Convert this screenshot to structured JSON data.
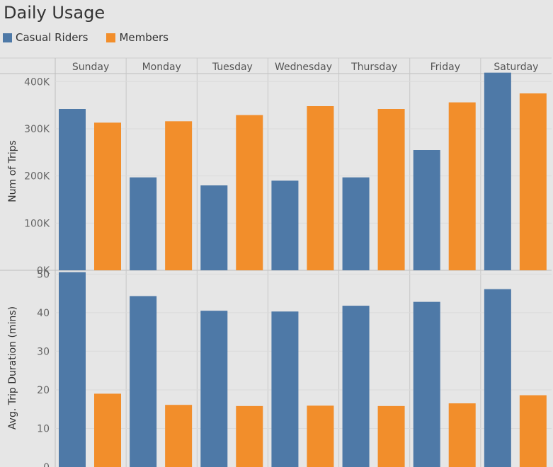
{
  "title": "Daily Usage",
  "colors": {
    "casual": "#4e79a7",
    "member": "#f28e2b"
  },
  "legend": [
    {
      "label": "Casual Riders",
      "color": "#4e79a7"
    },
    {
      "label": "Members",
      "color": "#f28e2b"
    }
  ],
  "chart_data": [
    {
      "type": "bar",
      "categories": [
        "Sunday",
        "Monday",
        "Tuesday",
        "Wednesday",
        "Thursday",
        "Friday",
        "Saturday"
      ],
      "ylabel": "Num of Trips",
      "ylim": [
        0,
        450000
      ],
      "yticks": [
        0,
        100000,
        200000,
        300000,
        400000
      ],
      "ytick_labels": [
        "0K",
        "100K",
        "200K",
        "300K",
        "400K"
      ],
      "series": [
        {
          "name": "Casual Riders",
          "values": [
            342000,
            197000,
            180000,
            190000,
            197000,
            255000,
            419000
          ]
        },
        {
          "name": "Members",
          "values": [
            313000,
            316000,
            329000,
            348000,
            342000,
            356000,
            375000
          ]
        }
      ]
    },
    {
      "type": "bar",
      "categories": [
        "Sunday",
        "Monday",
        "Tuesday",
        "Wednesday",
        "Thursday",
        "Friday",
        "Saturday"
      ],
      "ylabel": "Avg. Trip Duration (mins)",
      "ylim": [
        0,
        53
      ],
      "yticks": [
        0,
        10,
        20,
        30,
        40,
        50
      ],
      "ytick_labels": [
        "0",
        "10",
        "20",
        "30",
        "40",
        "50"
      ],
      "series": [
        {
          "name": "Casual Riders",
          "values": [
            50.5,
            44.3,
            40.5,
            40.3,
            41.8,
            42.8,
            46.1
          ]
        },
        {
          "name": "Members",
          "values": [
            19.0,
            16.1,
            15.8,
            15.9,
            15.8,
            16.5,
            18.6
          ]
        }
      ]
    }
  ]
}
